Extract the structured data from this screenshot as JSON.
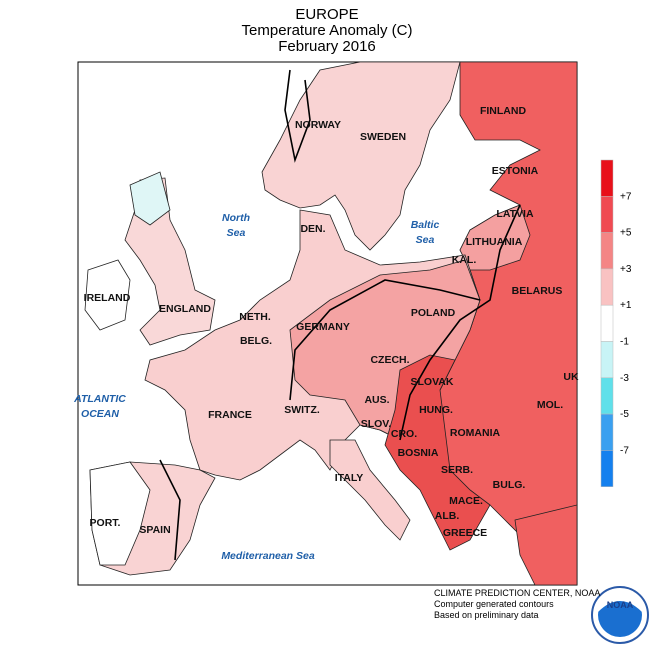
{
  "header": {
    "title": "EUROPE",
    "subtitle": "Temperature Anomaly (C)",
    "date": "February 2016"
  },
  "countries": [
    "NORWAY",
    "SWEDEN",
    "FINLAND",
    "ESTONIA",
    "LATVIA",
    "LITHUANIA",
    "KAL.",
    "BELARUS",
    "POLAND",
    "DEN.",
    "IRELAND",
    "ENGLAND",
    "NETH.",
    "BELG.",
    "GERMANY",
    "CZECH.",
    "SLOVAK",
    "AUS.",
    "HUNG.",
    "SWITZ.",
    "FRANCE",
    "SLOV.",
    "CRO.",
    "ROMANIA",
    "MOL.",
    "UK",
    "BOSNIA",
    "SERB.",
    "BULG.",
    "MACE.",
    "ALB.",
    "GREECE",
    "ITALY",
    "PORT.",
    "SPAIN"
  ],
  "seas": [
    {
      "lines": [
        "North",
        "Sea"
      ]
    },
    {
      "lines": [
        "Baltic",
        "Sea"
      ]
    },
    {
      "lines": [
        "ATLANTIC",
        "OCEAN"
      ]
    },
    {
      "lines": [
        "Mediterranean Sea"
      ]
    }
  ],
  "legend": {
    "labels": [
      "+7",
      "+5",
      "+3",
      "+1",
      "-1",
      "-3",
      "-5",
      "-7"
    ],
    "colors": [
      "#e8101a",
      "#f04a52",
      "#f48585",
      "#f9c2c2",
      "#ffffff",
      "#c8f4f6",
      "#5fe0ea",
      "#3aa0f0",
      "#1580ee"
    ]
  },
  "credits": [
    "CLIMATE PREDICTION CENTER, NOAA",
    "Computer generated contours",
    "Based on preliminary data"
  ]
}
